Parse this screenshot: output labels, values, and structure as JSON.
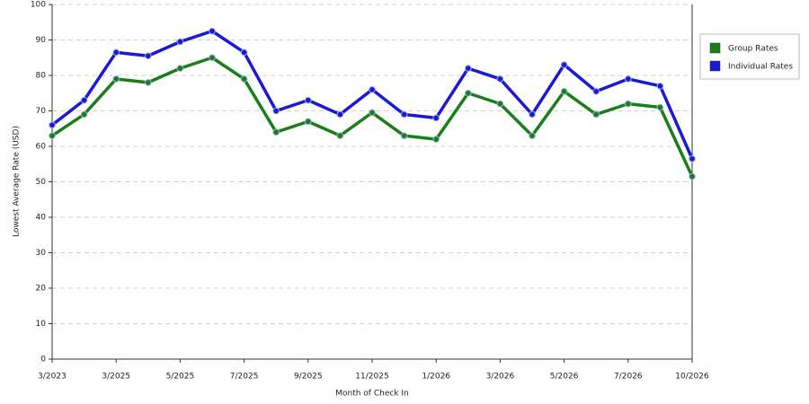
{
  "chart_data": {
    "type": "line",
    "categories": [
      "3/2023",
      null,
      "3/2025",
      null,
      "5/2025",
      null,
      "7/2025",
      null,
      "9/2025",
      null,
      "11/2025",
      null,
      "1/2026",
      null,
      "3/2026",
      null,
      "5/2026",
      null,
      "7/2026",
      null,
      "10/2026"
    ],
    "series": [
      {
        "name": "Group Rates",
        "color": "#1a7f1a",
        "values": [
          63,
          69,
          79,
          78,
          82,
          85,
          79,
          64,
          67,
          63,
          69.5,
          63,
          62,
          75,
          72,
          63,
          75.5,
          69,
          72,
          71,
          51.5
        ]
      },
      {
        "name": "Individual Rates",
        "color": "#1a1ad6",
        "values": [
          66,
          73,
          86.5,
          85.5,
          89.5,
          92.5,
          86.5,
          70,
          73,
          69,
          76,
          69,
          68,
          82,
          79,
          69,
          83,
          75.5,
          79,
          77,
          56.5
        ]
      }
    ],
    "x_label": "Month of Check In",
    "y_label": "Lowest Average Rate (USD)",
    "ylim": [
      0,
      100
    ],
    "yticks": [
      0,
      10,
      20,
      30,
      40,
      50,
      60,
      70,
      80,
      90,
      100
    ],
    "grid": true,
    "legend": "right"
  }
}
